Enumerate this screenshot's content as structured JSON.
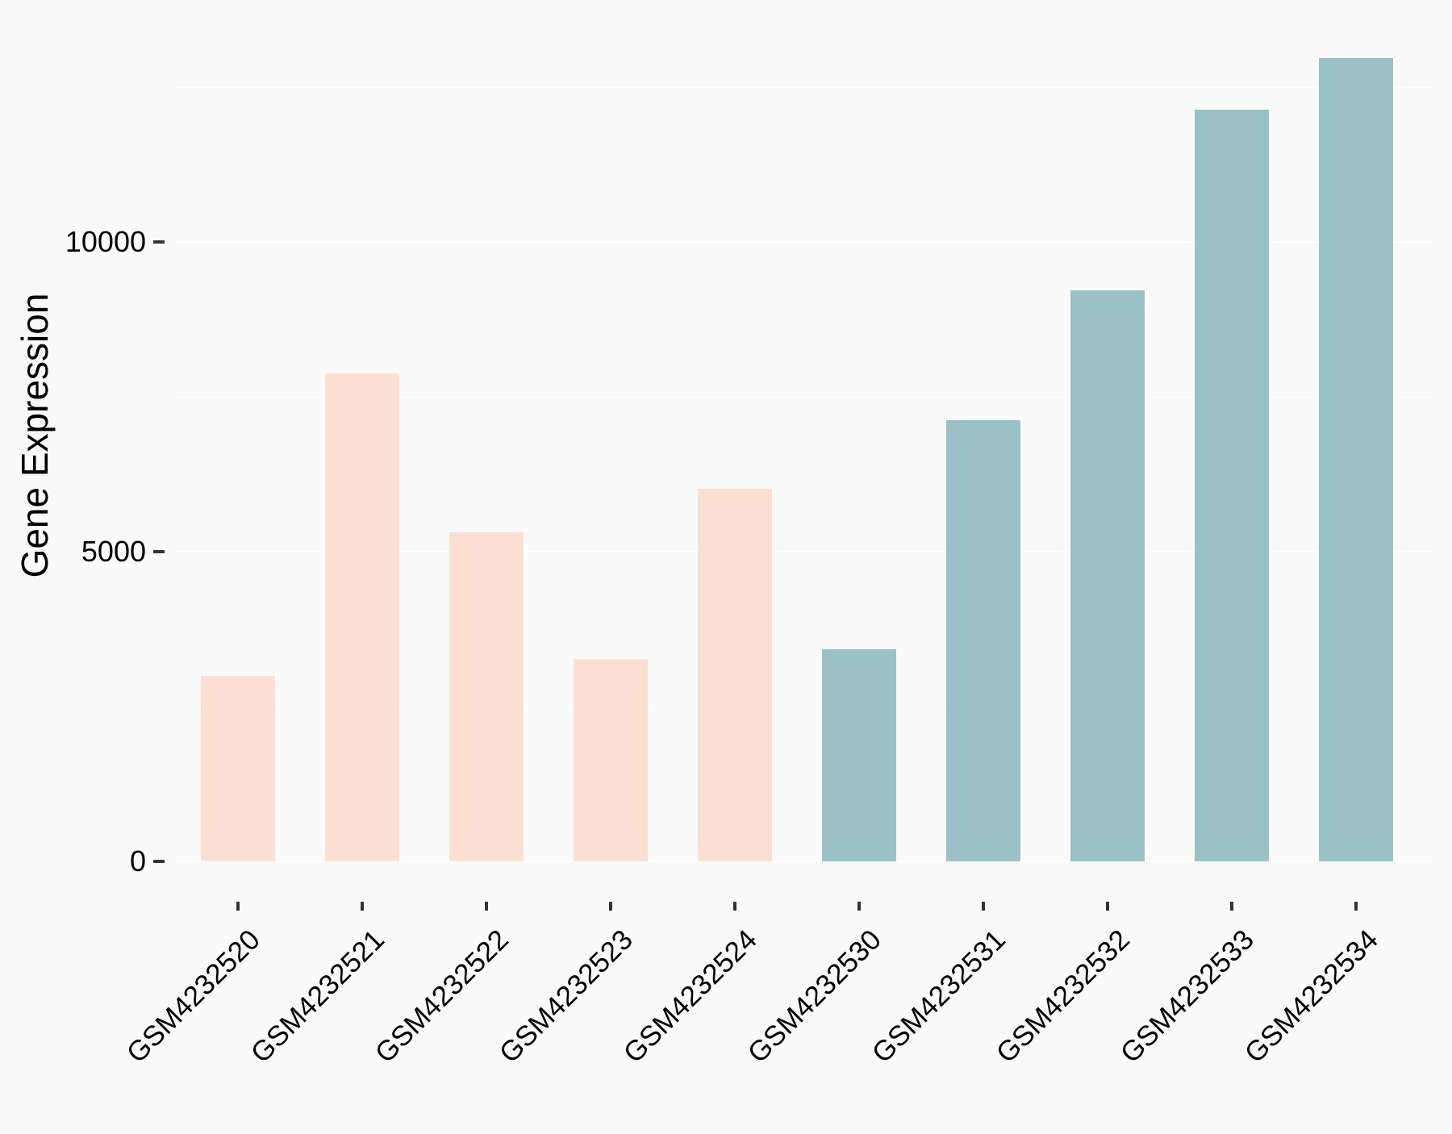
{
  "figure": {
    "background_color": "#FAFAFA",
    "gridline_color": "#FFFFFF",
    "tick_color": "#333333",
    "text_color": "#000000",
    "pink_color": "#FCDFD3",
    "teal_color": "#9AC2C6"
  },
  "chart_data": {
    "type": "bar",
    "title": "",
    "xlabel": "",
    "ylabel": "Gene Expression",
    "categories": [
      "GSM4232520",
      "GSM4232521",
      "GSM4232522",
      "GSM4232523",
      "GSM4232524",
      "GSM4232530",
      "GSM4232531",
      "GSM4232532",
      "GSM4232533",
      "GSM4232534"
    ],
    "values": [
      3000,
      7880,
      5310,
      3270,
      6010,
      3430,
      7120,
      9220,
      12140,
      12970
    ],
    "bar_colors": [
      "#FCDFD3",
      "#FCDFD3",
      "#FCDFD3",
      "#FCDFD3",
      "#FCDFD3",
      "#9AC2C6",
      "#9AC2C6",
      "#9AC2C6",
      "#9AC2C6",
      "#9AC2C6"
    ],
    "ylim": [
      0,
      13620
    ],
    "yticks": [
      0,
      5000,
      10000
    ],
    "ytick_labels": [
      "0",
      "5000",
      "10000"
    ],
    "minor_gridlines": [
      2500,
      7500,
      12500
    ],
    "grid": true,
    "legend_position": "none"
  }
}
